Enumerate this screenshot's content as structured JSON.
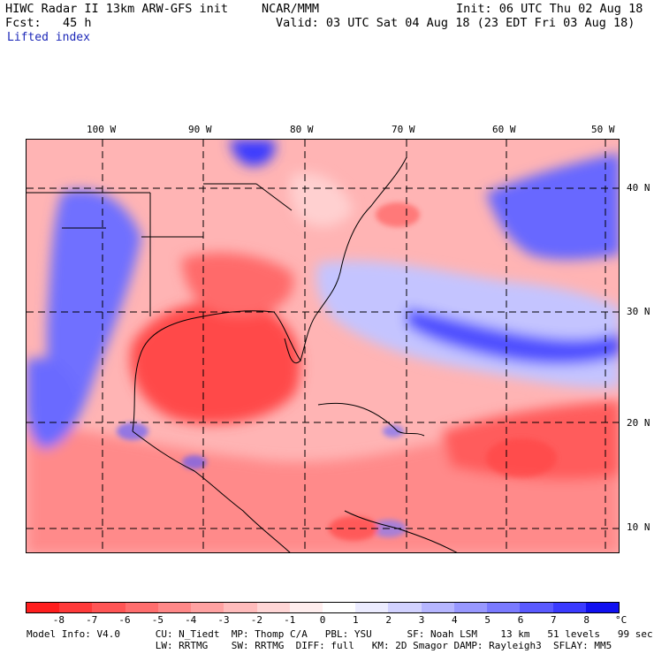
{
  "header": {
    "line1_left": "HIWC Radar II 13km ARW-GFS init",
    "line1_mid": "NCAR/MMM",
    "line1_right": "Init: 06 UTC Thu 02 Aug 18",
    "line2_left": "Fcst:   45 h",
    "line2_right": "Valid: 03 UTC Sat 04 Aug 18 (23 EDT Fri 03 Aug 18)",
    "field_name": "Lifted index"
  },
  "map": {
    "longitude_labels": [
      "100 W",
      "90 W",
      "80 W",
      "70 W",
      "60 W",
      "50 W"
    ],
    "latitude_labels": [
      "40 N",
      "30 N",
      "20 N",
      "10 N"
    ]
  },
  "colorbar": {
    "unit": "°C",
    "ticks": [
      "-8",
      "-7",
      "-6",
      "-5",
      "-4",
      "-3",
      "-2",
      "-1",
      "0",
      "1",
      "2",
      "3",
      "4",
      "5",
      "6",
      "7",
      "8"
    ],
    "colors": [
      "#ff1e1e",
      "#ff3a3a",
      "#ff5555",
      "#ff6e6e",
      "#ff8888",
      "#ffa2a2",
      "#ffbcbc",
      "#ffd6d6",
      "#ffeeee",
      "#ffffff",
      "#ececff",
      "#d2d2ff",
      "#b6b6ff",
      "#9898ff",
      "#7a7aff",
      "#5a5aff",
      "#3a3aff",
      "#1010f0"
    ]
  },
  "footer": {
    "line1": "Model Info: V4.0      CU: N_Tiedt  MP: Thomp C/A   PBL: YSU      SF: Noah LSM    13 km   51 levels   99 sec",
    "line2": "                      LW: RRTMG    SW: RRTMG  DIFF: full   KM: 2D Smagor DAMP: Rayleigh3  SFLAY: MM5"
  }
}
